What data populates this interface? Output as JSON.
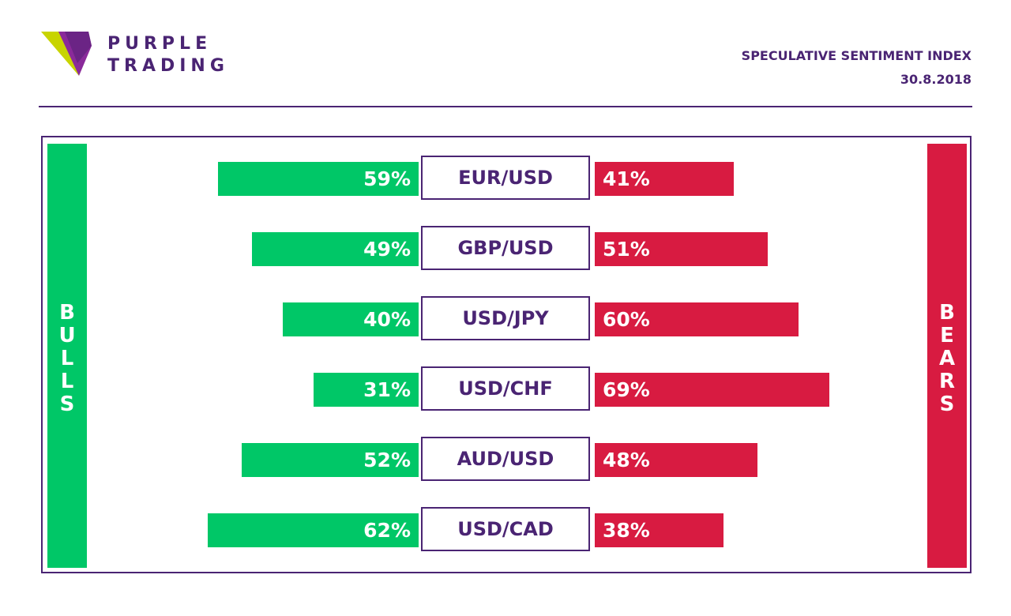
{
  "brand": {
    "line1": "PURPLE",
    "line2": "TRADING"
  },
  "header": {
    "title": "SPECULATIVE SENTIMENT INDEX",
    "date": "30.8.2018"
  },
  "sides": {
    "bulls": "BULLS",
    "bears": "BEARS"
  },
  "colors": {
    "brand": "#4a2473",
    "bulls": "#00c767",
    "bears": "#d81b41"
  },
  "icons": {
    "logo": "purple-trading-logo-icon"
  },
  "chart_data": {
    "type": "bar",
    "title": "",
    "categories": [
      "EUR/USD",
      "GBP/USD",
      "USD/JPY",
      "USD/CHF",
      "AUD/USD",
      "USD/CAD"
    ],
    "series": [
      {
        "name": "BULLS",
        "values": [
          59,
          49,
          40,
          31,
          52,
          62
        ],
        "labels": [
          "59%",
          "49%",
          "40%",
          "31%",
          "52%",
          "62%"
        ]
      },
      {
        "name": "BEARS",
        "values": [
          41,
          51,
          60,
          69,
          48,
          38
        ],
        "labels": [
          "41%",
          "51%",
          "60%",
          "69%",
          "48%",
          "38%"
        ]
      }
    ],
    "ylim": [
      0,
      100
    ],
    "grid": false,
    "legend": "left-right sides"
  }
}
